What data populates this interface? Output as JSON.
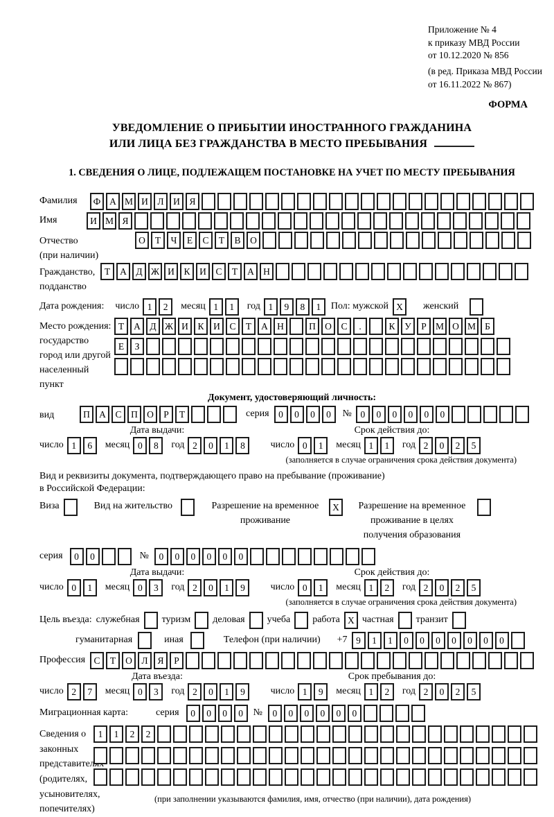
{
  "page": {
    "appendix_lines": [
      "Приложение № 4",
      "к приказу МВД России",
      "от 10.12.2020 № 856"
    ],
    "edition_lines": [
      "(в ред. Приказа МВД России",
      "от 16.11.2022 № 867)"
    ],
    "form_label": "ФОРМА",
    "title_line1": "УВЕДОМЛЕНИЕ О ПРИБЫТИИ ИНОСТРАННОГО ГРАЖДАНИНА",
    "title_line2": "ИЛИ ЛИЦА БЕЗ ГРАЖДАНСТВА В МЕСТО ПРЕБЫВАНИЯ",
    "section1_heading": "1. СВЕДЕНИЯ О ЛИЦЕ, ПОДЛЕЖАЩЕМ ПОСТАНОВКЕ НА УЧЕТ ПО МЕСТУ ПРЕБЫВАНИЯ"
  },
  "labels": {
    "surname": "Фамилия",
    "given_name": "Имя",
    "patronymic_1": "Отчество",
    "patronymic_2": "(при наличии)",
    "citizenship_1": "Гражданство,",
    "citizenship_2": "подданство",
    "birth_date": "Дата рождения:",
    "day": "число",
    "month": "месяц",
    "year": "год",
    "sex": "Пол: мужской",
    "female": "женский",
    "birth_place_1": "Место рождения:",
    "birth_place_2": "государство",
    "birth_place_3": "город или другой",
    "birth_place_4": "населенный пункт",
    "id_doc_heading": "Документ, удостоверяющий личность:",
    "doc_kind": "вид",
    "series": "серия",
    "number": "№",
    "issue_date": "Дата выдачи:",
    "valid_until": "Срок действия до:",
    "validity_note": "(заполняется в случае ограничения срока действия документа)",
    "stay_doc_1": "Вид и реквизиты документа, подтверждающего право на пребывание (проживание)",
    "stay_doc_2": "в Российской Федерации:",
    "visa": "Виза",
    "residence_permit": "Вид на жительство",
    "temp_residence_1": "Разрешение на временное",
    "temp_residence_2": "проживание",
    "temp_residence_edu_1": "Разрешение на временное",
    "temp_residence_edu_2": "проживание в целях",
    "temp_residence_edu_3": "получения образования",
    "entry_purpose": "Цель въезда:",
    "purpose_official": "служебная",
    "purpose_tourism": "туризм",
    "purpose_business": "деловая",
    "purpose_study": "учеба",
    "purpose_work": "работа",
    "purpose_private": "частная",
    "purpose_transit": "транзит",
    "purpose_humanitarian": "гуманитарная",
    "purpose_other": "иная",
    "phone": "Телефон (при наличии)",
    "phone_prefix": "+7",
    "profession": "Профессия",
    "entry_date": "Дата въезда:",
    "stay_until": "Срок пребывания до:",
    "migration_card": "Миграционная карта:",
    "reps_1": "Сведения о",
    "reps_2": "законных",
    "reps_3": "представителях",
    "reps_4": "(родителях,",
    "reps_5": "усыновителях,",
    "reps_6": "попечителях)",
    "reps_note": "(при заполнении указываются фамилия, имя, отчество (при наличии), дата рождения)"
  },
  "fields": {
    "surname": {
      "text": "ФАМИЛИЯ",
      "count": 28
    },
    "given_name": {
      "text": "ИМЯ",
      "count": 28
    },
    "patronymic": {
      "text": "ОТЧЕСТВО",
      "count": 25
    },
    "citizenship": {
      "text": "ТАДЖИКИСТАН",
      "count": 27
    },
    "birth": {
      "day": {
        "text": "12",
        "count": 2
      },
      "month": {
        "text": "11",
        "count": 2
      },
      "year": {
        "text": "1981",
        "count": 4
      }
    },
    "sex": {
      "male": {
        "text": "X",
        "count": 1
      },
      "female": {
        "text": "",
        "count": 1
      }
    },
    "birth_place": {
      "row1": {
        "text": "ТАДЖИКИСТАН ПОС. КУРМОМБ",
        "count": 24
      },
      "row2": {
        "text": "ЕЗ",
        "count": 25
      },
      "row3": {
        "text": "",
        "count": 25
      }
    },
    "id_doc": {
      "kind": {
        "text": "ПАСПОРТ",
        "count": 10
      },
      "series": {
        "text": "0000",
        "count": 4
      },
      "number": {
        "text": "000000",
        "count": 11
      },
      "issue": {
        "day": {
          "text": "16",
          "count": 2
        },
        "month": {
          "text": "08",
          "count": 2
        },
        "year": {
          "text": "2018",
          "count": 4
        }
      },
      "valid": {
        "day": {
          "text": "01",
          "count": 2
        },
        "month": {
          "text": "11",
          "count": 2
        },
        "year": {
          "text": "2025",
          "count": 4
        }
      }
    },
    "stay_doc": {
      "visa": {
        "text": "",
        "count": 1
      },
      "residence_permit": {
        "text": "",
        "count": 1
      },
      "temp_residence": {
        "text": "X",
        "count": 1
      },
      "temp_residence_edu": {
        "text": "",
        "count": 1
      },
      "series": {
        "text": "00",
        "count": 4
      },
      "number": {
        "text": "000000",
        "count": 14
      },
      "issue": {
        "day": {
          "text": "01",
          "count": 2
        },
        "month": {
          "text": "03",
          "count": 2
        },
        "year": {
          "text": "2019",
          "count": 4
        }
      },
      "valid": {
        "day": {
          "text": "01",
          "count": 2
        },
        "month": {
          "text": "12",
          "count": 2
        },
        "year": {
          "text": "2025",
          "count": 4
        }
      }
    },
    "purpose": {
      "official": {
        "text": "",
        "count": 1
      },
      "tourism": {
        "text": "",
        "count": 1
      },
      "business": {
        "text": "",
        "count": 1
      },
      "study": {
        "text": "",
        "count": 1
      },
      "work": {
        "text": "X",
        "count": 1
      },
      "private": {
        "text": "",
        "count": 1
      },
      "transit": {
        "text": "",
        "count": 1
      },
      "humanitarian": {
        "text": "",
        "count": 1
      },
      "other": {
        "text": "",
        "count": 1
      }
    },
    "phone": {
      "text": "9110000000",
      "count": 11
    },
    "profession": {
      "text": "СТОЛЯР",
      "count": 28
    },
    "entry": {
      "day": {
        "text": "27",
        "count": 2
      },
      "month": {
        "text": "03",
        "count": 2
      },
      "year": {
        "text": "2019",
        "count": 4
      }
    },
    "stay_until": {
      "day": {
        "text": "19",
        "count": 2
      },
      "month": {
        "text": "12",
        "count": 2
      },
      "year": {
        "text": "2025",
        "count": 4
      }
    },
    "migration_card": {
      "series": {
        "text": "0000",
        "count": 4
      },
      "number": {
        "text": "000000",
        "count": 10
      }
    },
    "representatives": {
      "row1": {
        "text": "1122",
        "count": 28
      },
      "row2": {
        "text": "",
        "count": 28
      },
      "row3": {
        "text": "",
        "count": 28
      }
    }
  }
}
